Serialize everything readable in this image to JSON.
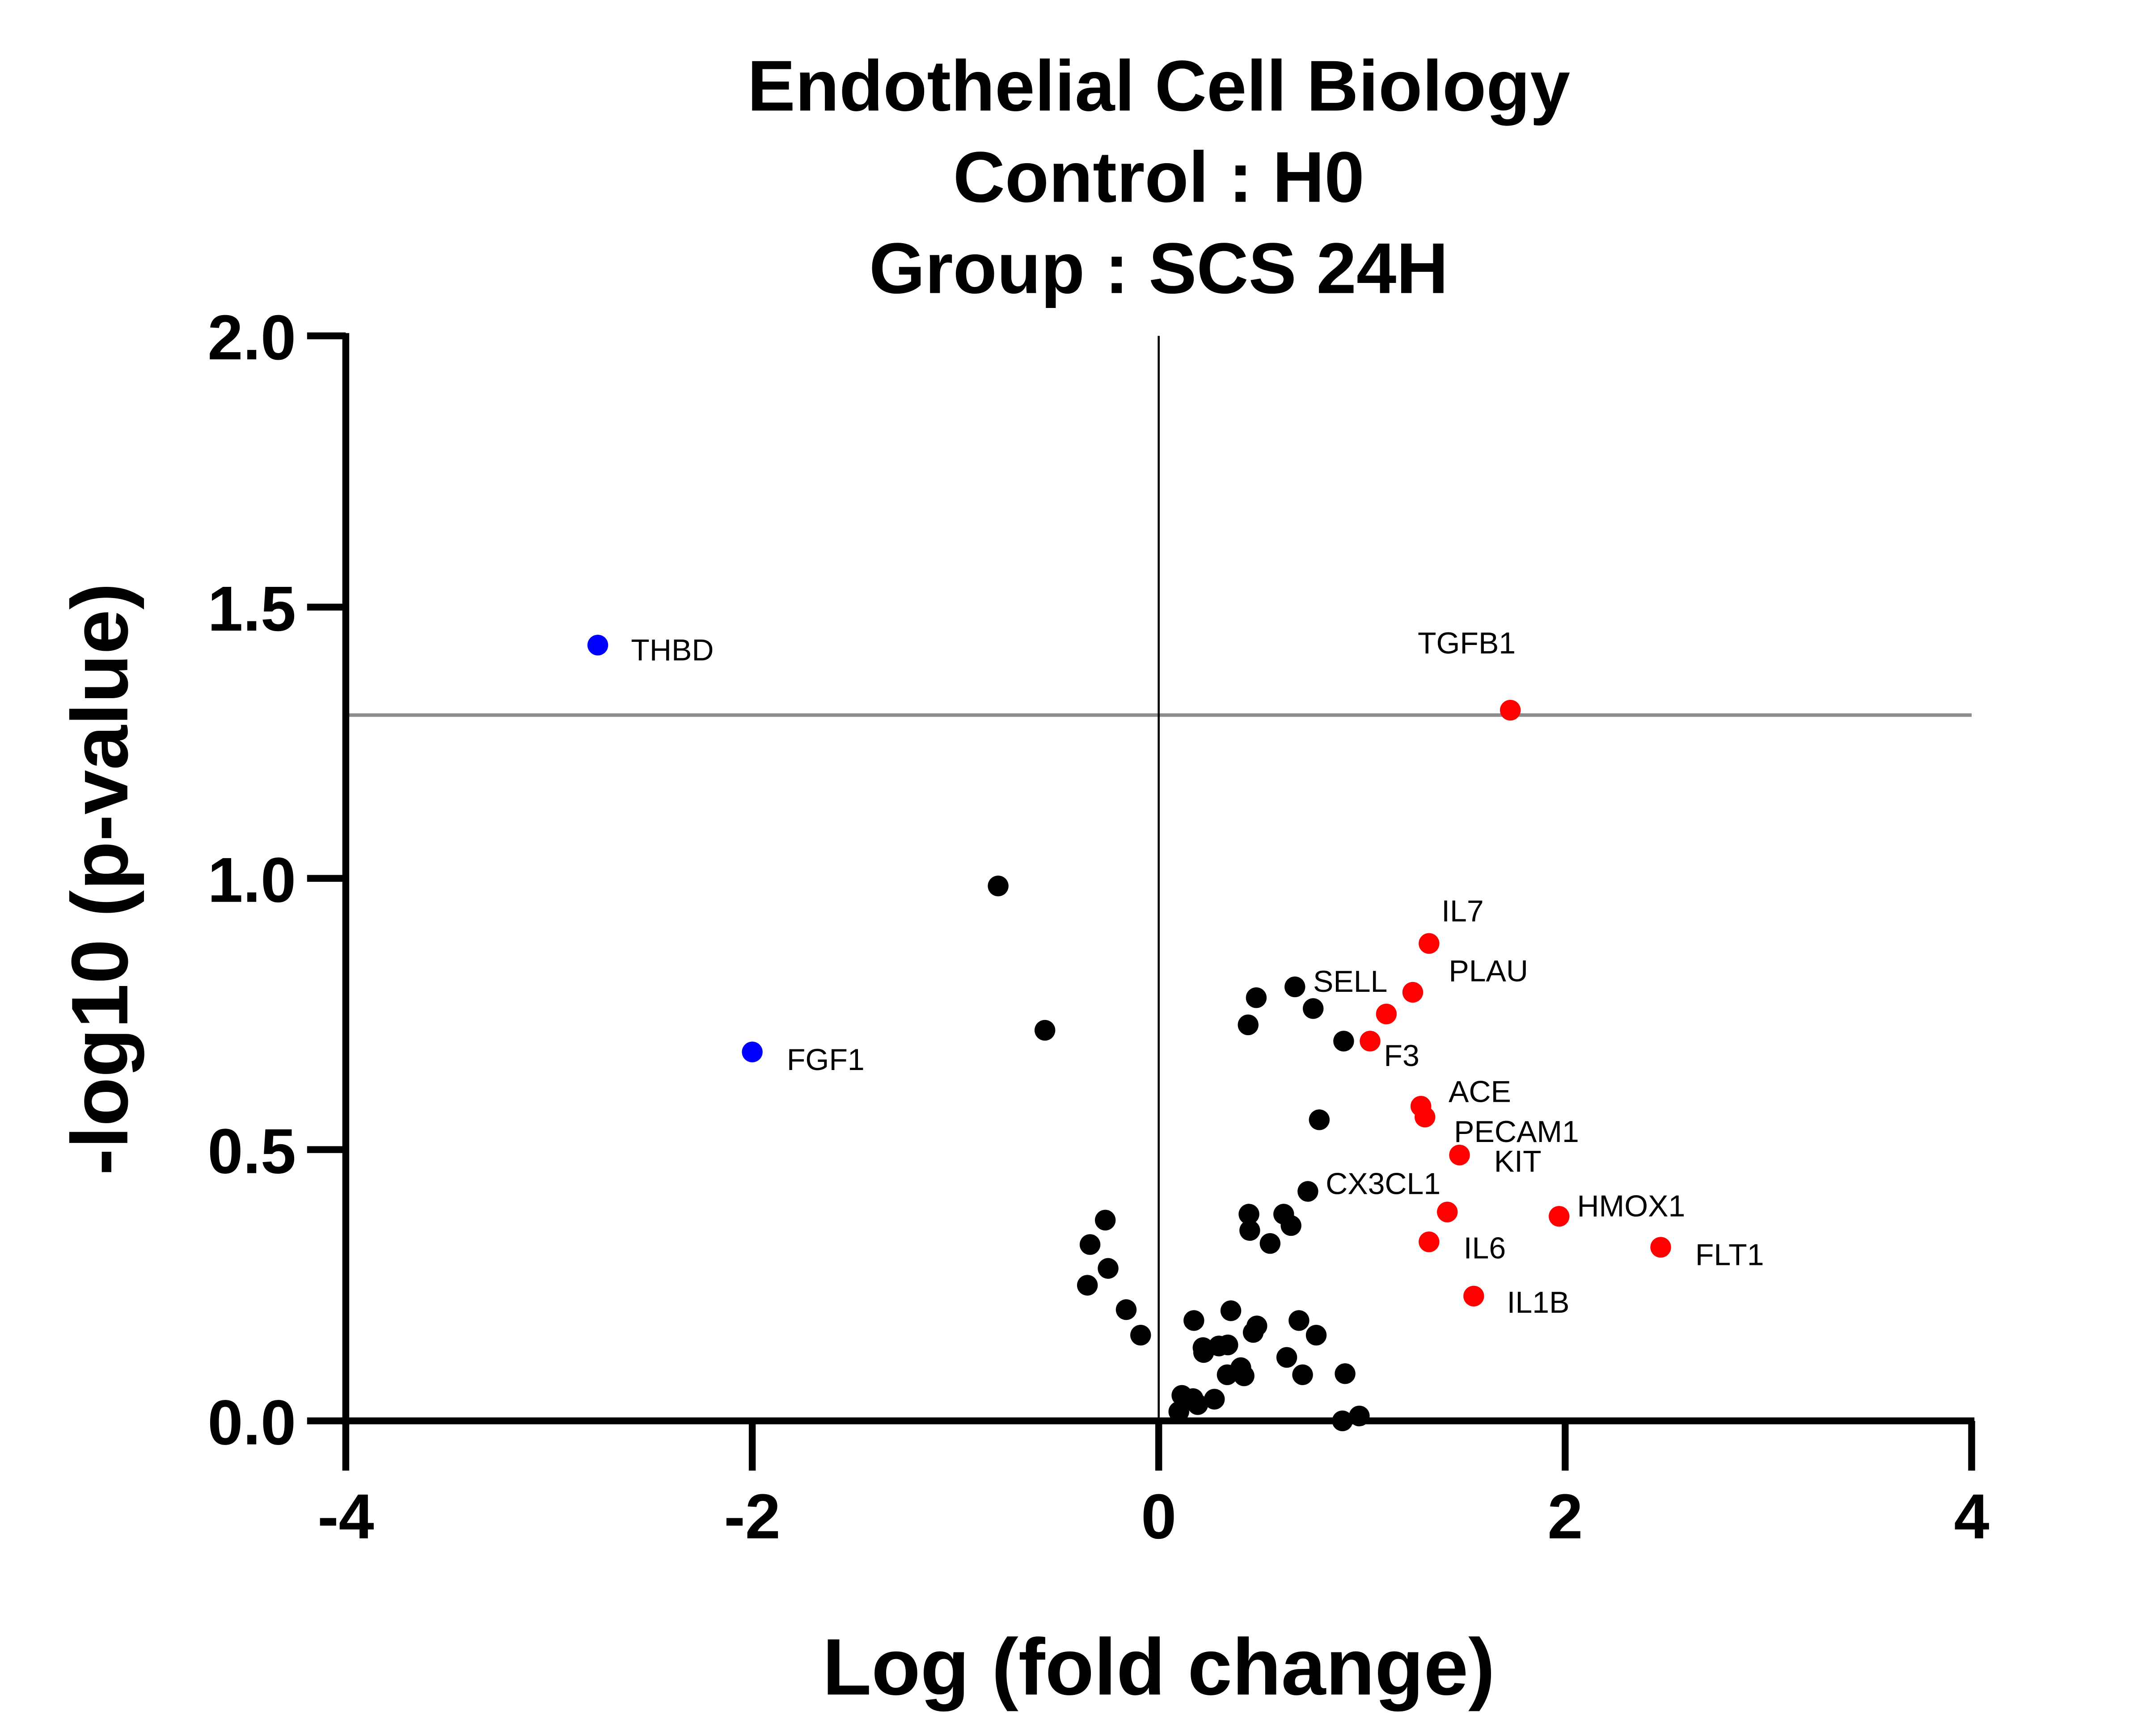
{
  "chart_data": {
    "type": "scatter",
    "title": [
      "Endothelial Cell Biology",
      "Control : H0",
      "Group : SCS 24H"
    ],
    "xlabel": "Log (fold change)",
    "ylabel": "-log10 (p-value)",
    "xlim": [
      -4,
      4
    ],
    "ylim": [
      0,
      2
    ],
    "xticks": [
      "-4",
      "-2",
      "0",
      "2",
      "4"
    ],
    "yticks": [
      "0.0",
      "0.5",
      "1.0",
      "1.5",
      "2.0"
    ],
    "xtick_values": [
      -4,
      -2,
      0,
      2,
      4
    ],
    "ytick_values": [
      0,
      0.5,
      1.0,
      1.5,
      2.0
    ],
    "grid": false,
    "threshold_y": 1.301,
    "threshold_color": "#8c8c8c",
    "colors": {
      "up": "#ff0000",
      "down": "#0000ff",
      "ns": "#000000"
    },
    "points": [
      {
        "label": "THBD",
        "x": -2.76,
        "y": 1.43,
        "group": "down"
      },
      {
        "label": "FGF1",
        "x": -2.0,
        "y": 0.68,
        "group": "down"
      },
      {
        "label": "TGFB1",
        "x": 1.73,
        "y": 1.31,
        "group": "up"
      },
      {
        "label": "IL7",
        "x": 1.33,
        "y": 0.88,
        "group": "up"
      },
      {
        "label": "PLAU",
        "x": 1.25,
        "y": 0.79,
        "group": "up"
      },
      {
        "label": "SELL",
        "x": 1.12,
        "y": 0.75,
        "group": "up"
      },
      {
        "label": "F3",
        "x": 1.04,
        "y": 0.7,
        "group": "up"
      },
      {
        "label": "ACE",
        "x": 1.29,
        "y": 0.58,
        "group": "up"
      },
      {
        "label": "PECAM1",
        "x": 1.31,
        "y": 0.56,
        "group": "up"
      },
      {
        "label": "KIT",
        "x": 1.48,
        "y": 0.49,
        "group": "up"
      },
      {
        "label": "CX3CL1",
        "x": 1.42,
        "y": 0.385,
        "group": "up"
      },
      {
        "label": "HMOX1",
        "x": 1.97,
        "y": 0.377,
        "group": "up"
      },
      {
        "label": "IL6",
        "x": 1.33,
        "y": 0.33,
        "group": "up"
      },
      {
        "label": "FLT1",
        "x": 2.47,
        "y": 0.32,
        "group": "up"
      },
      {
        "label": "IL1B",
        "x": 1.55,
        "y": 0.23,
        "group": "up"
      },
      {
        "x": -0.79,
        "y": 0.986,
        "group": "ns"
      },
      {
        "x": -0.56,
        "y": 0.72,
        "group": "ns"
      },
      {
        "x": 0.48,
        "y": 0.78,
        "group": "ns"
      },
      {
        "x": 0.67,
        "y": 0.8,
        "group": "ns"
      },
      {
        "x": 0.44,
        "y": 0.73,
        "group": "ns"
      },
      {
        "x": 0.76,
        "y": 0.76,
        "group": "ns"
      },
      {
        "x": 0.91,
        "y": 0.7,
        "group": "ns"
      },
      {
        "x": 0.79,
        "y": 0.555,
        "group": "ns"
      },
      {
        "x": 0.734,
        "y": 0.423,
        "group": "ns"
      },
      {
        "x": 0.444,
        "y": 0.381,
        "group": "ns"
      },
      {
        "x": 0.615,
        "y": 0.381,
        "group": "ns"
      },
      {
        "x": 0.448,
        "y": 0.351,
        "group": "ns"
      },
      {
        "x": 0.651,
        "y": 0.36,
        "group": "ns"
      },
      {
        "x": 0.548,
        "y": 0.327,
        "group": "ns"
      },
      {
        "x": -0.263,
        "y": 0.37,
        "group": "ns"
      },
      {
        "x": -0.338,
        "y": 0.325,
        "group": "ns"
      },
      {
        "x": -0.249,
        "y": 0.281,
        "group": "ns"
      },
      {
        "x": -0.351,
        "y": 0.25,
        "group": "ns"
      },
      {
        "x": -0.16,
        "y": 0.205,
        "group": "ns"
      },
      {
        "x": -0.089,
        "y": 0.158,
        "group": "ns"
      },
      {
        "x": 0.173,
        "y": 0.185,
        "group": "ns"
      },
      {
        "x": 0.355,
        "y": 0.203,
        "group": "ns"
      },
      {
        "x": 0.483,
        "y": 0.175,
        "group": "ns"
      },
      {
        "x": 0.465,
        "y": 0.163,
        "group": "ns"
      },
      {
        "x": 0.69,
        "y": 0.185,
        "group": "ns"
      },
      {
        "x": 0.775,
        "y": 0.158,
        "group": "ns"
      },
      {
        "x": 0.218,
        "y": 0.135,
        "group": "ns"
      },
      {
        "x": 0.221,
        "y": 0.126,
        "group": "ns"
      },
      {
        "x": 0.296,
        "y": 0.138,
        "group": "ns"
      },
      {
        "x": 0.34,
        "y": 0.14,
        "group": "ns"
      },
      {
        "x": 0.404,
        "y": 0.098,
        "group": "ns"
      },
      {
        "x": 0.337,
        "y": 0.085,
        "group": "ns"
      },
      {
        "x": 0.42,
        "y": 0.083,
        "group": "ns"
      },
      {
        "x": 0.63,
        "y": 0.117,
        "group": "ns"
      },
      {
        "x": 0.708,
        "y": 0.085,
        "group": "ns"
      },
      {
        "x": 0.917,
        "y": 0.087,
        "group": "ns"
      },
      {
        "x": 0.114,
        "y": 0.047,
        "group": "ns"
      },
      {
        "x": 0.169,
        "y": 0.041,
        "group": "ns"
      },
      {
        "x": 0.192,
        "y": 0.03,
        "group": "ns"
      },
      {
        "x": 0.274,
        "y": 0.04,
        "group": "ns"
      },
      {
        "x": 0.099,
        "y": 0.017,
        "group": "ns"
      },
      {
        "x": 0.904,
        "y": 0.0,
        "group": "ns"
      },
      {
        "x": 0.987,
        "y": 0.009,
        "group": "ns"
      }
    ]
  }
}
